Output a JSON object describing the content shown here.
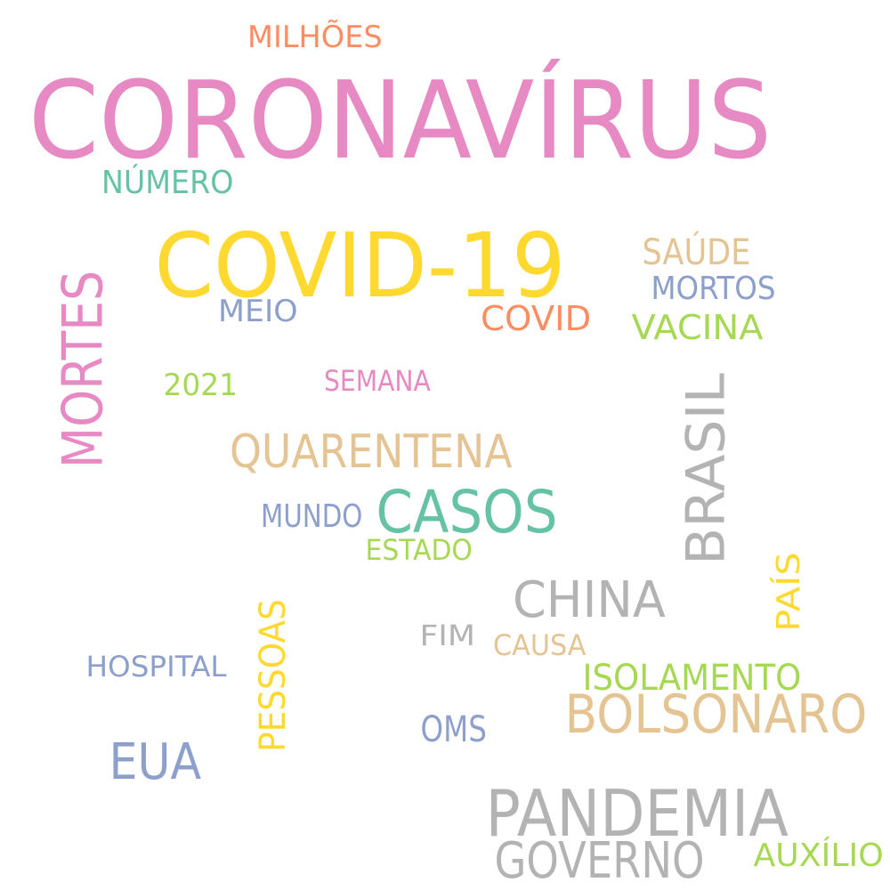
{
  "words": [
    {
      "text": "CORONAVÍRUS",
      "color": "#E78AC3",
      "orientation": "horizontal"
    },
    {
      "text": "COVID-19",
      "color": "#FFD92F",
      "orientation": "horizontal"
    },
    {
      "text": "MILHÕES",
      "color": "#FC8D62",
      "orientation": "horizontal"
    },
    {
      "text": "NÚMERO",
      "color": "#66C2A5",
      "orientation": "horizontal"
    },
    {
      "text": "SAÚDE",
      "color": "#E5C494",
      "orientation": "horizontal"
    },
    {
      "text": "MORTOS",
      "color": "#8DA0CB",
      "orientation": "horizontal"
    },
    {
      "text": "MEIO",
      "color": "#8DA0CB",
      "orientation": "horizontal"
    },
    {
      "text": "COVID",
      "color": "#FC8D62",
      "orientation": "horizontal"
    },
    {
      "text": "VACINA",
      "color": "#A6D854",
      "orientation": "horizontal"
    },
    {
      "text": "MORTES",
      "color": "#E78AC3",
      "orientation": "vertical"
    },
    {
      "text": "2021",
      "color": "#A6D854",
      "orientation": "horizontal"
    },
    {
      "text": "SEMANA",
      "color": "#E78AC3",
      "orientation": "horizontal"
    },
    {
      "text": "BRASIL",
      "color": "#B3B3B3",
      "orientation": "vertical"
    },
    {
      "text": "QUARENTENA",
      "color": "#E5C494",
      "orientation": "horizontal"
    },
    {
      "text": "CASOS",
      "color": "#66C2A5",
      "orientation": "horizontal"
    },
    {
      "text": "MUNDO",
      "color": "#8DA0CB",
      "orientation": "horizontal"
    },
    {
      "text": "ESTADO",
      "color": "#A6D854",
      "orientation": "horizontal"
    },
    {
      "text": "CHINA",
      "color": "#B3B3B3",
      "orientation": "horizontal"
    },
    {
      "text": "PAÍS",
      "color": "#FFD92F",
      "orientation": "vertical"
    },
    {
      "text": "PESSOAS",
      "color": "#FFD92F",
      "orientation": "vertical"
    },
    {
      "text": "FIM",
      "color": "#B3B3B3",
      "orientation": "horizontal"
    },
    {
      "text": "CAUSA",
      "color": "#E5C494",
      "orientation": "horizontal"
    },
    {
      "text": "HOSPITAL",
      "color": "#8DA0CB",
      "orientation": "horizontal"
    },
    {
      "text": "ISOLAMENTO",
      "color": "#A6D854",
      "orientation": "horizontal"
    },
    {
      "text": "BOLSONARO",
      "color": "#E5C494",
      "orientation": "horizontal"
    },
    {
      "text": "OMS",
      "color": "#8DA0CB",
      "orientation": "horizontal"
    },
    {
      "text": "EUA",
      "color": "#8DA0CB",
      "orientation": "horizontal"
    },
    {
      "text": "PANDEMIA",
      "color": "#B3B3B3",
      "orientation": "horizontal"
    },
    {
      "text": "GOVERNO",
      "color": "#B3B3B3",
      "orientation": "horizontal"
    },
    {
      "text": "AUXÍLIO",
      "color": "#A6D854",
      "orientation": "horizontal"
    }
  ]
}
